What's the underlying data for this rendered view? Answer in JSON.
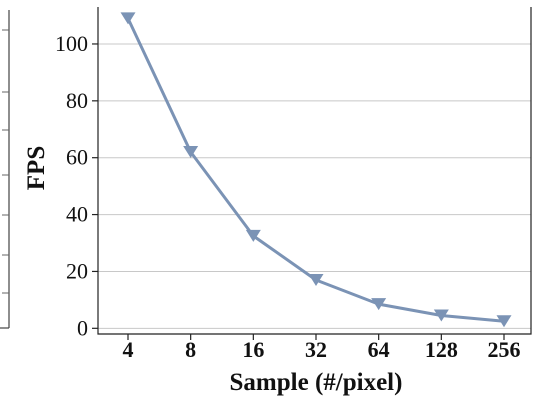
{
  "chart_data": {
    "type": "line",
    "x": [
      "4",
      "8",
      "16",
      "32",
      "64",
      "128",
      "256"
    ],
    "series": [
      {
        "values": [
          109,
          62,
          32.5,
          17,
          8.5,
          4.5,
          2.5
        ]
      }
    ],
    "xlabel": "Sample (#/pixel)",
    "ylabel": "FPS",
    "ylim": [
      -2,
      113
    ],
    "yticks": [
      0,
      20,
      40,
      60,
      80,
      100
    ],
    "grid": "horizontal",
    "marker": "downward-triangle",
    "colors": {
      "line": "#7b93b5",
      "marker": "#7b93b5",
      "grid": "#c8c8c8",
      "axis": "#222222"
    }
  }
}
